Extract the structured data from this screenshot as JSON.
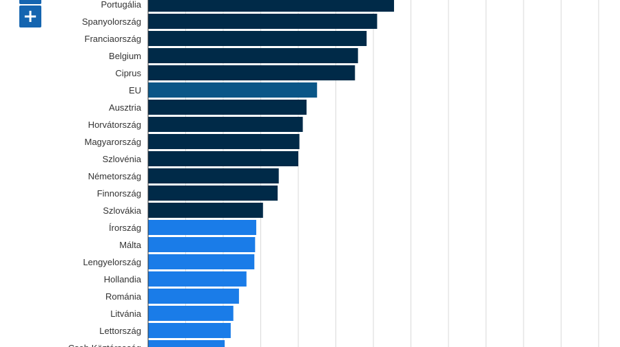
{
  "controls": {
    "zoom_in_label": "+",
    "zoom_out_label": "−"
  },
  "colors": {
    "dark": "#002a48",
    "eu": "#0a5687",
    "light": "#1a7ce8",
    "grid": "#d9d9d9",
    "zoom_button": "#1565b0"
  },
  "chart_data": {
    "type": "bar",
    "orientation": "horizontal",
    "grid": true,
    "xlim": [
      0,
      12500
    ],
    "categories": [
      "Portugália",
      "Spanyolország",
      "Franciaország",
      "Belgium",
      "Ciprus",
      "EU",
      "Ausztria",
      "Horvátország",
      "Magyarország",
      "Szlovénia",
      "Németország",
      "Finnország",
      "Szlovákia",
      "Írország",
      "Málta",
      "Lengyelország",
      "Hollandia",
      "Románia",
      "Litvánia",
      "Lettország",
      "Cseh Köztársaság"
    ],
    "values": [
      6550,
      6100,
      5820,
      5590,
      5510,
      4500,
      4220,
      4120,
      4030,
      4000,
      3480,
      3450,
      3060,
      2880,
      2850,
      2830,
      2620,
      2420,
      2270,
      2200,
      2040
    ],
    "bar_groups": [
      "dark",
      "dark",
      "dark",
      "dark",
      "dark",
      "eu",
      "dark",
      "dark",
      "dark",
      "dark",
      "dark",
      "dark",
      "dark",
      "light",
      "light",
      "light",
      "light",
      "light",
      "light",
      "light",
      "light"
    ]
  }
}
